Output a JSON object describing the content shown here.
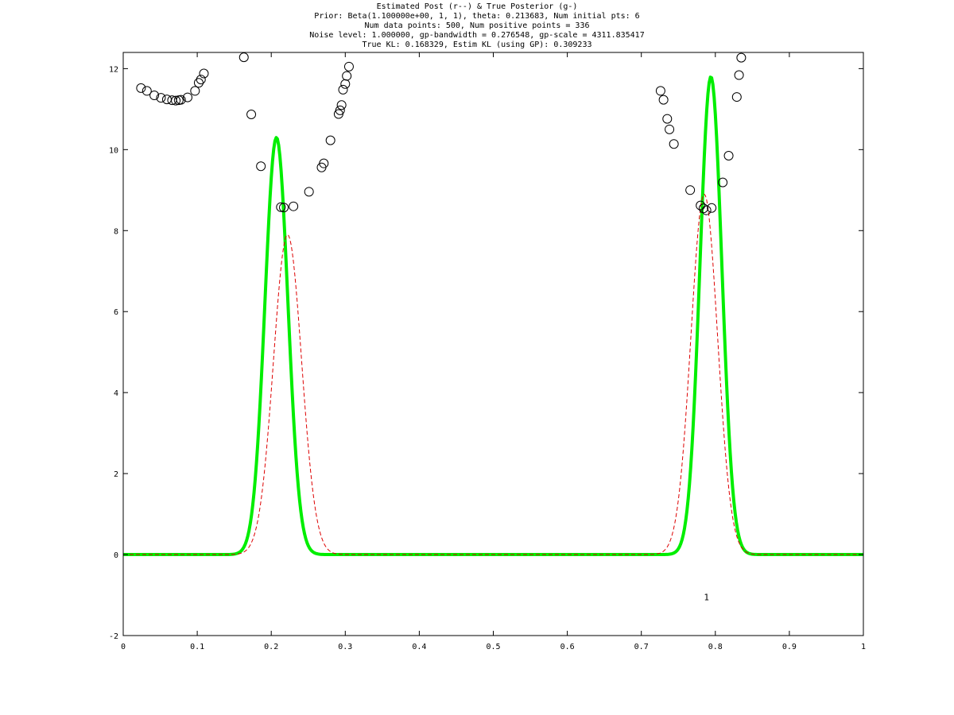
{
  "chart_data": {
    "type": "line",
    "title_lines": [
      "Estimated Post (r--) & True Posterior (g-)",
      "Prior: Beta(1.100000e+00, 1, 1), theta: 0.213683, Num initial pts: 6",
      "Num data points: 500, Num positive points = 336",
      "Noise level: 1.000000, gp-bandwidth  = 0.276548, gp-scale = 4311.835417",
      "True KL: 0.168329, Estim KL (using GP): 0.309233"
    ],
    "xlabel": "",
    "ylabel": "",
    "xlim": [
      0,
      1
    ],
    "ylim": [
      -2,
      12.4
    ],
    "xticks": [
      0,
      0.1,
      0.2,
      0.3,
      0.4,
      0.5,
      0.6,
      0.7,
      0.8,
      0.9,
      1
    ],
    "xtick_labels": [
      "0",
      "0.1",
      "0.2",
      "0.3",
      "0.4",
      "0.5",
      "0.6",
      "0.7",
      "0.8",
      "0.9",
      "1"
    ],
    "yticks": [
      -2,
      0,
      2,
      4,
      6,
      8,
      10,
      12
    ],
    "ytick_labels": [
      "-2",
      "0",
      "2",
      "4",
      "6",
      "8",
      "10",
      "12"
    ],
    "grid": false,
    "series": [
      {
        "style": "solid",
        "color": "#00ee00",
        "peaks": [
          {
            "mu": 0.207,
            "sigma": 0.0155,
            "height": 10.3
          },
          {
            "mu": 0.794,
            "sigma": 0.0148,
            "height": 11.8
          }
        ]
      },
      {
        "style": "dashed",
        "color": "#dd0000",
        "peaks": [
          {
            "mu": 0.222,
            "sigma": 0.019,
            "height": 7.9
          },
          {
            "mu": 0.785,
            "sigma": 0.018,
            "height": 8.9
          }
        ]
      }
    ],
    "scatter_points": [
      [
        0.024,
        11.52
      ],
      [
        0.032,
        11.45
      ],
      [
        0.042,
        11.34
      ],
      [
        0.051,
        11.28
      ],
      [
        0.059,
        11.24
      ],
      [
        0.066,
        11.22
      ],
      [
        0.071,
        11.21
      ],
      [
        0.075,
        11.22
      ],
      [
        0.078,
        11.23
      ],
      [
        0.087,
        11.29
      ],
      [
        0.097,
        11.45
      ],
      [
        0.102,
        11.65
      ],
      [
        0.105,
        11.73
      ],
      [
        0.109,
        11.88
      ],
      [
        0.163,
        12.28
      ],
      [
        0.173,
        10.87
      ],
      [
        0.186,
        9.59
      ],
      [
        0.213,
        8.58
      ],
      [
        0.217,
        8.57
      ],
      [
        0.23,
        8.6
      ],
      [
        0.251,
        8.96
      ],
      [
        0.268,
        9.56
      ],
      [
        0.271,
        9.66
      ],
      [
        0.28,
        10.23
      ],
      [
        0.291,
        10.88
      ],
      [
        0.293,
        10.97
      ],
      [
        0.295,
        11.1
      ],
      [
        0.297,
        11.48
      ],
      [
        0.3,
        11.62
      ],
      [
        0.302,
        11.82
      ],
      [
        0.305,
        12.05
      ],
      [
        0.726,
        11.45
      ],
      [
        0.73,
        11.23
      ],
      [
        0.735,
        10.76
      ],
      [
        0.738,
        10.5
      ],
      [
        0.744,
        10.14
      ],
      [
        0.766,
        9.0
      ],
      [
        0.78,
        8.62
      ],
      [
        0.784,
        8.55
      ],
      [
        0.788,
        8.5
      ],
      [
        0.795,
        8.56
      ],
      [
        0.81,
        9.19
      ],
      [
        0.818,
        9.85
      ],
      [
        0.829,
        11.3
      ],
      [
        0.832,
        11.84
      ],
      [
        0.835,
        12.27
      ]
    ],
    "annotations": [
      {
        "text": "1",
        "x": 0.788,
        "y": -1.05
      }
    ]
  }
}
